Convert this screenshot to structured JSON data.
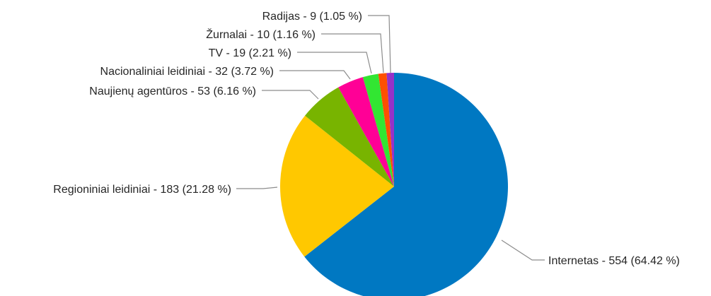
{
  "chart_data": {
    "type": "pie",
    "title": "",
    "start_angle_deg": 0,
    "direction": "clockwise",
    "legend": "none",
    "slices": [
      {
        "category": "Internetas",
        "value": 554,
        "percent": 64.42,
        "label": "Internetas - 554 (64.42 %)",
        "color": "#0078c2"
      },
      {
        "category": "Regioniniai leidiniai",
        "value": 183,
        "percent": 21.28,
        "label": "Regioniniai leidiniai - 183 (21.28 %)",
        "color": "#ffc800"
      },
      {
        "category": "Naujienų agentūros",
        "value": 53,
        "percent": 6.16,
        "label": "Naujienų agentūros - 53 (6.16 %)",
        "color": "#78b400"
      },
      {
        "category": "Nacionaliniai leidiniai",
        "value": 32,
        "percent": 3.72,
        "label": "Nacionaliniai leidiniai - 32 (3.72 %)",
        "color": "#ff0096"
      },
      {
        "category": "TV",
        "value": 19,
        "percent": 2.21,
        "label": "TV - 19 (2.21 %)",
        "color": "#32e632"
      },
      {
        "category": "Žurnalai",
        "value": 10,
        "percent": 1.16,
        "label": "Žurnalai - 10 (1.16 %)",
        "color": "#ff5000"
      },
      {
        "category": "Radijas",
        "value": 9,
        "percent": 1.05,
        "label": "Radijas - 9 (1.05 %)",
        "color": "#9632c8"
      }
    ]
  }
}
